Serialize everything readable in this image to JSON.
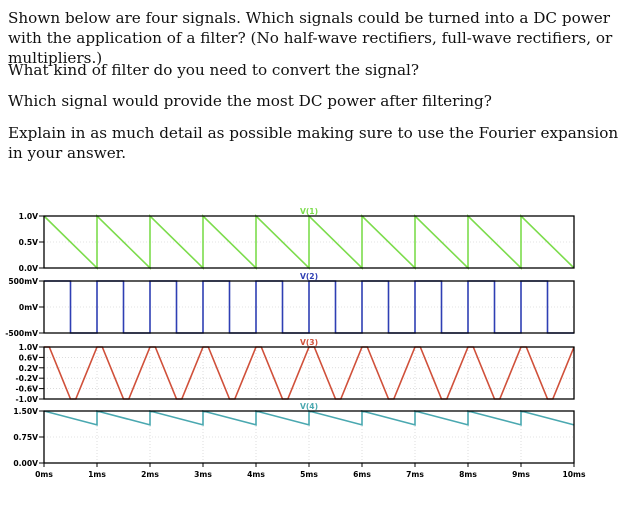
{
  "question": {
    "p1": "Shown below are four signals.  Which signals could be turned into a DC power with the application of a filter? (No half-wave rectifiers, full-wave rectifiers, or multipliers.)",
    "p2": "What kind of filter do you need to convert the signal?",
    "p3": "Which signal would provide the most DC power after filtering?",
    "p4": "Explain in as much detail as possible making sure to use the Fourier expansion in your answer."
  },
  "chart_data": {
    "type": "line",
    "x_unit": "ms",
    "x_range": [
      0,
      10
    ],
    "x_ticks": [
      "0ms",
      "1ms",
      "2ms",
      "3ms",
      "4ms",
      "5ms",
      "6ms",
      "7ms",
      "8ms",
      "9ms",
      "10ms"
    ],
    "grid": true,
    "panels": [
      {
        "name": "V(1)",
        "color": "#7cdc4c",
        "waveform": "sawtooth-falling",
        "ylim": [
          0.0,
          1.0
        ],
        "y_ticks": [
          {
            "v": 1.0,
            "label": "1.0V"
          },
          {
            "v": 0.5,
            "label": "0.5V"
          },
          {
            "v": 0.0,
            "label": "0.0V"
          }
        ],
        "x": [
          0,
          1,
          1,
          2,
          2,
          3,
          3,
          4,
          4,
          5,
          5,
          6,
          6,
          7,
          7,
          8,
          8,
          9,
          9,
          10
        ],
        "y": [
          1,
          0,
          1,
          0,
          1,
          0,
          1,
          0,
          1,
          0,
          1,
          0,
          1,
          0,
          1,
          0,
          1,
          0,
          1,
          0
        ]
      },
      {
        "name": "V(2)",
        "color": "#2f3fb4",
        "waveform": "square",
        "ylim": [
          -0.5,
          0.5
        ],
        "y_ticks": [
          {
            "v": 0.5,
            "label": "500mV"
          },
          {
            "v": 0.0,
            "label": "0mV"
          },
          {
            "v": -0.5,
            "label": "-500mV"
          }
        ],
        "x": [
          0,
          0.5,
          0.5,
          1,
          1,
          1.5,
          1.5,
          2,
          2,
          2.5,
          2.5,
          3,
          3,
          3.5,
          3.5,
          4,
          4,
          4.5,
          4.5,
          5,
          5,
          5.5,
          5.5,
          6,
          6,
          6.5,
          6.5,
          7,
          7,
          7.5,
          7.5,
          8,
          8,
          8.5,
          8.5,
          9,
          9,
          9.5,
          9.5,
          10
        ],
        "y": [
          0.5,
          0.5,
          -0.5,
          -0.5,
          0.5,
          0.5,
          -0.5,
          -0.5,
          0.5,
          0.5,
          -0.5,
          -0.5,
          0.5,
          0.5,
          -0.5,
          -0.5,
          0.5,
          0.5,
          -0.5,
          -0.5,
          0.5,
          0.5,
          -0.5,
          -0.5,
          0.5,
          0.5,
          -0.5,
          -0.5,
          0.5,
          0.5,
          -0.5,
          -0.5,
          0.5,
          0.5,
          -0.5,
          -0.5,
          0.5,
          0.5,
          -0.5,
          -0.5
        ]
      },
      {
        "name": "V(3)",
        "color": "#d0503a",
        "waveform": "double-sawtooth",
        "ylim": [
          -1.0,
          1.0
        ],
        "y_ticks": [
          {
            "v": 1.0,
            "label": "1.0V"
          },
          {
            "v": 0.6,
            "label": "0.6V"
          },
          {
            "v": 0.2,
            "label": "0.2V"
          },
          {
            "v": -0.2,
            "label": "-0.2V"
          },
          {
            "v": -0.6,
            "label": "-0.6V"
          },
          {
            "v": -1.0,
            "label": "-1.0V"
          }
        ],
        "x": [
          0,
          0.1,
          0.5,
          0.6,
          1.0,
          1.1,
          1.5,
          1.6,
          2.0,
          2.1,
          2.5,
          2.6,
          3.0,
          3.1,
          3.5,
          3.6,
          4.0,
          4.1,
          4.5,
          4.6,
          5.0,
          5.1,
          5.5,
          5.6,
          6.0,
          6.1,
          6.5,
          6.6,
          7.0,
          7.1,
          7.5,
          7.6,
          8.0,
          8.1,
          8.5,
          8.6,
          9.0,
          9.1,
          9.5,
          9.6,
          10.0
        ],
        "y": [
          1.0,
          1.0,
          -1.0,
          -1.0,
          1.0,
          1.0,
          -1.0,
          -1.0,
          1.0,
          1.0,
          -1.0,
          -1.0,
          1.0,
          1.0,
          -1.0,
          -1.0,
          1.0,
          1.0,
          -1.0,
          -1.0,
          1.0,
          1.0,
          -1.0,
          -1.0,
          1.0,
          1.0,
          -1.0,
          -1.0,
          1.0,
          1.0,
          -1.0,
          -1.0,
          1.0,
          1.0,
          -1.0,
          -1.0,
          1.0,
          1.0,
          -1.0,
          -1.0,
          1.0
        ]
      },
      {
        "name": "V(4)",
        "color": "#4aa8b0",
        "waveform": "sawtooth-falling",
        "ylim": [
          0.0,
          1.5
        ],
        "y_ticks": [
          {
            "v": 1.5,
            "label": "1.50V"
          },
          {
            "v": 0.75,
            "label": "0.75V"
          },
          {
            "v": 0.0,
            "label": "0.00V"
          }
        ],
        "x": [
          0,
          1,
          1,
          2,
          2,
          3,
          3,
          4,
          4,
          5,
          5,
          6,
          6,
          7,
          7,
          8,
          8,
          9,
          9,
          10
        ],
        "y": [
          1.5,
          1.1,
          1.5,
          1.1,
          1.5,
          1.1,
          1.5,
          1.1,
          1.5,
          1.1,
          1.5,
          1.1,
          1.5,
          1.1,
          1.5,
          1.1,
          1.5,
          1.1,
          1.5,
          1.1
        ]
      }
    ]
  }
}
